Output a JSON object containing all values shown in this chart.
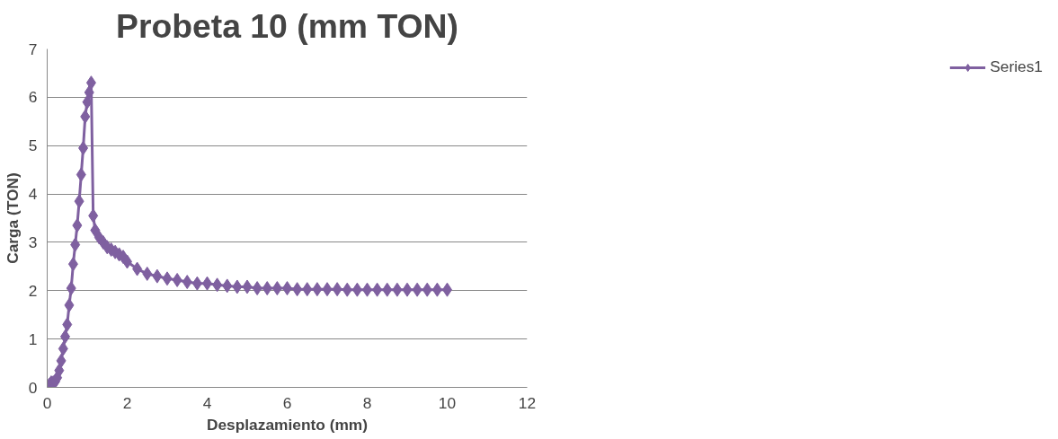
{
  "chart_data": {
    "type": "line",
    "title": "Probeta 10 (mm TON)",
    "xlabel": "Desplazamiento (mm)",
    "ylabel": "Carga (TON)",
    "x": [
      0,
      0.05,
      0.1,
      0.15,
      0.2,
      0.25,
      0.3,
      0.35,
      0.4,
      0.45,
      0.5,
      0.55,
      0.6,
      0.65,
      0.7,
      0.75,
      0.8,
      0.85,
      0.9,
      0.95,
      1.0,
      1.05,
      1.1,
      1.15,
      1.2,
      1.3,
      1.4,
      1.5,
      1.6,
      1.7,
      1.8,
      1.9,
      2.0,
      2.25,
      2.5,
      2.75,
      3.0,
      3.25,
      3.5,
      3.75,
      4.0,
      4.25,
      4.5,
      4.75,
      5.0,
      5.25,
      5.5,
      5.75,
      6.0,
      6.25,
      6.5,
      6.75,
      7.0,
      7.25,
      7.5,
      7.75,
      8.0,
      8.25,
      8.5,
      8.75,
      9.0,
      9.25,
      9.5,
      9.75,
      10.0
    ],
    "series": [
      {
        "name": "Series1",
        "color": "#7f60a0",
        "values": [
          0,
          0.05,
          0.1,
          0.1,
          0.12,
          0.2,
          0.35,
          0.55,
          0.8,
          1.05,
          1.3,
          1.7,
          2.05,
          2.55,
          2.95,
          3.35,
          3.85,
          4.4,
          4.95,
          5.6,
          5.9,
          6.1,
          6.3,
          3.55,
          3.25,
          3.1,
          3.0,
          2.9,
          2.85,
          2.8,
          2.75,
          2.7,
          2.6,
          2.45,
          2.35,
          2.3,
          2.25,
          2.22,
          2.18,
          2.15,
          2.15,
          2.12,
          2.1,
          2.08,
          2.08,
          2.05,
          2.05,
          2.05,
          2.05,
          2.03,
          2.03,
          2.03,
          2.03,
          2.03,
          2.02,
          2.02,
          2.02,
          2.02,
          2.02,
          2.02,
          2.02,
          2.02,
          2.02,
          2.02,
          2.02
        ]
      }
    ],
    "xlim": [
      0,
      12
    ],
    "xticks": [
      0,
      2,
      4,
      6,
      8,
      10,
      12
    ],
    "ylim": [
      0,
      7
    ],
    "yticks": [
      0,
      1,
      2,
      3,
      4,
      5,
      6,
      7
    ],
    "grid": "y",
    "legend": "right",
    "marker": "diamond",
    "line_style": "solid"
  }
}
